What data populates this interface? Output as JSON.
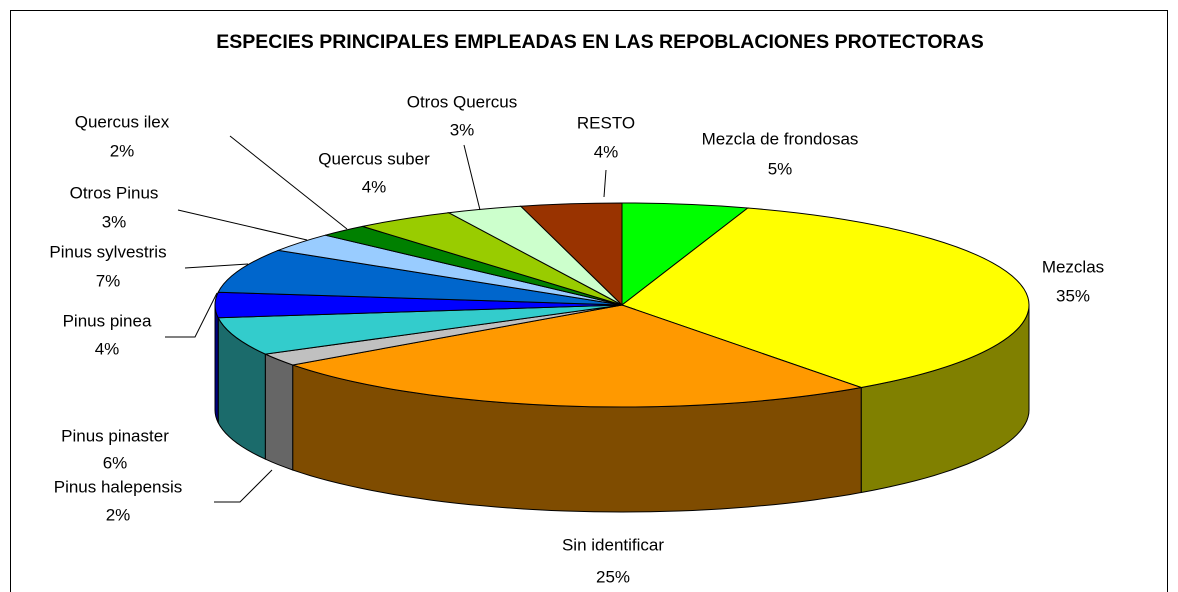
{
  "chart_data": {
    "type": "pie3d",
    "title": "ESPECIES PRINCIPALES EMPLEADAS EN LAS REPOBLACIONES PROTECTORAS",
    "categories": [
      "Mezcla de frondosas",
      "Mezclas",
      "Sin identificar",
      "Pinus halepensis",
      "Pinus pinaster",
      "Pinus pinea",
      "Pinus sylvestris",
      "Otros Pinus",
      "Quercus ilex",
      "Quercus suber",
      "Otros Quercus",
      "RESTO"
    ],
    "values": [
      5,
      35,
      25,
      2,
      6,
      4,
      7,
      3,
      2,
      4,
      3,
      4
    ],
    "value_labels": [
      "5%",
      "35%",
      "25%",
      "2%",
      "6%",
      "4%",
      "7%",
      "3%",
      "2%",
      "4%",
      "3%",
      "4%"
    ],
    "colors": [
      "#00ff00",
      "#ffff00",
      "#ff9900",
      "#c0c0c0",
      "#33cccc",
      "#0000ff",
      "#0066cc",
      "#99ccff",
      "#008000",
      "#99cc00",
      "#ccffcc",
      "#993300"
    ],
    "side_colors": [
      "#008000",
      "#808000",
      "#7f4c00",
      "#666666",
      "#1b6b6b",
      "#000080",
      "#003366",
      "#4c667f",
      "#004000",
      "#4c6600",
      "#667f66",
      "#4c1900"
    ]
  }
}
